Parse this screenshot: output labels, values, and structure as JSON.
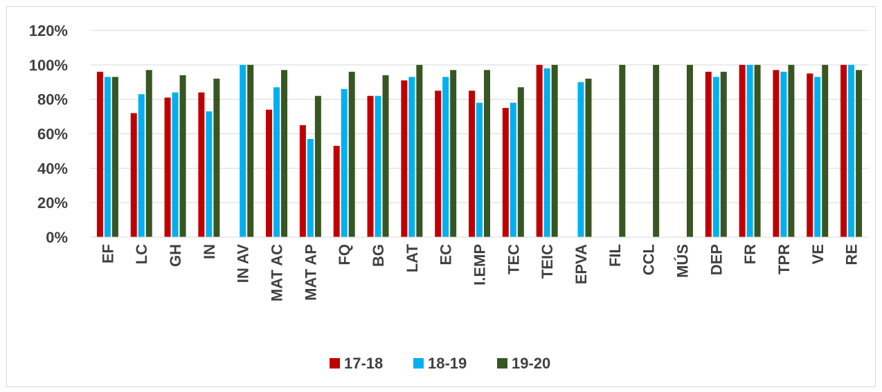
{
  "chart_data": {
    "type": "bar",
    "title": "",
    "xlabel": "",
    "ylabel": "",
    "ylim": [
      0,
      120
    ],
    "y_tick_step": 20,
    "y_tick_format": "percent",
    "grid": "horizontal",
    "legend_position": "bottom",
    "categories": [
      "EF",
      "LC",
      "GH",
      "IN",
      "IN AV",
      "MAT AC",
      "MAT AP",
      "FQ",
      "BG",
      "LAT",
      "EC",
      "I.EMP",
      "TEC",
      "TEIC",
      "EPVA",
      "FIL",
      "CCL",
      "MÚS",
      "DEP",
      "FR",
      "TPR",
      "VE",
      "RE"
    ],
    "series": [
      {
        "name": "17-18",
        "color": "#c00000",
        "values": [
          96,
          72,
          81,
          84,
          null,
          74,
          65,
          53,
          82,
          91,
          85,
          85,
          75,
          100,
          null,
          null,
          null,
          null,
          96,
          100,
          97,
          95,
          100
        ]
      },
      {
        "name": "18-19",
        "color": "#00b0f0",
        "values": [
          93,
          83,
          84,
          73,
          100,
          87,
          57,
          86,
          82,
          93,
          93,
          78,
          78,
          98,
          90,
          null,
          null,
          null,
          93,
          100,
          96,
          93,
          100
        ]
      },
      {
        "name": "19-20",
        "color": "#375623",
        "values": [
          93,
          97,
          94,
          92,
          100,
          97,
          82,
          96,
          94,
          100,
          97,
          97,
          87,
          100,
          92,
          100,
          100,
          100,
          96,
          100,
          100,
          100,
          97
        ]
      }
    ]
  }
}
